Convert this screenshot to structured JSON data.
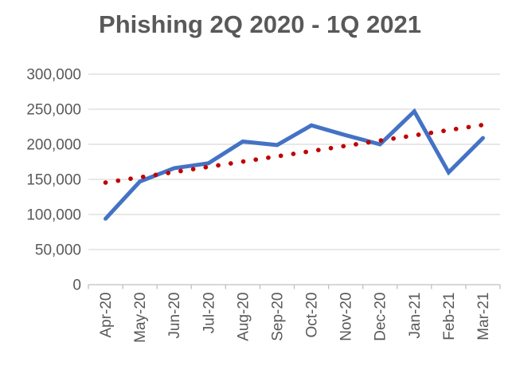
{
  "chart_data": {
    "type": "line",
    "title": "Phishing 2Q 2020 - 1Q 2021",
    "categories": [
      "Apr-20",
      "May-20",
      "Jun-20",
      "Jul-20",
      "Aug-20",
      "Sep-20",
      "Oct-20",
      "Nov-20",
      "Dec-20",
      "Jan-21",
      "Feb-21",
      "Mar-21"
    ],
    "series": [
      {
        "role": "data-line",
        "style": "solid",
        "color": "#4472C4",
        "values": [
          94000,
          147000,
          166000,
          173000,
          204000,
          199000,
          227000,
          213000,
          200000,
          247000,
          160000,
          209000
        ]
      },
      {
        "role": "trendline",
        "style": "dotted",
        "color": "#C00000",
        "values": [
          145500,
          153000,
          160500,
          167900,
          175400,
          182900,
          190400,
          197800,
          205300,
          212800,
          220300,
          227700
        ]
      }
    ],
    "xlabel": "",
    "ylabel": "",
    "ylim": [
      0,
      300000
    ],
    "ytick_values": [
      0,
      50000,
      100000,
      150000,
      200000,
      250000,
      300000
    ],
    "ytick_labels": [
      "0",
      "50,000",
      "100,000",
      "150,000",
      "200,000",
      "250,000",
      "300,000"
    ],
    "x_label_rotation": -90,
    "grid": "horizontal",
    "legend": "none"
  },
  "colors": {
    "background": "#FFFFFF",
    "title_text": "#595959",
    "axis_text": "#595959",
    "gridline": "#D9D9D9",
    "axis_line": "#BFBFBF",
    "data_line": "#4472C4",
    "trendline": "#C00000"
  }
}
